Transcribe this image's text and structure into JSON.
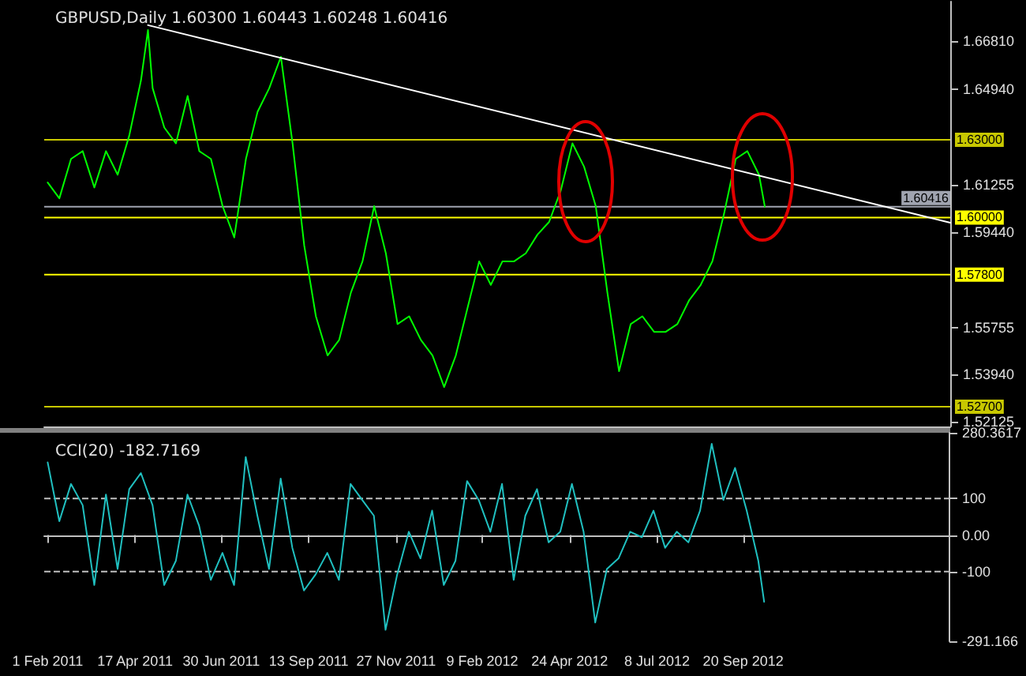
{
  "chart_data": [
    {
      "type": "line",
      "title": "GBPUSD,Daily 1.60300 1.60443 1.60248 1.60416",
      "xlim": [
        "2011-01-29",
        "2013-03-16"
      ],
      "ylim": [
        1.5194,
        1.6833
      ],
      "yticks": [
        {
          "value": 1.6681,
          "label": "1.66810"
        },
        {
          "value": 1.6494,
          "label": "1.64940"
        },
        {
          "value": 1.61255,
          "label": "1.61255"
        },
        {
          "value": 1.5944,
          "label": "1.59440"
        },
        {
          "value": 1.55755,
          "label": "1.55755"
        },
        {
          "value": 1.5394,
          "label": "1.53940"
        },
        {
          "value": 1.52125,
          "label": "1.52125"
        }
      ],
      "tick_labels": "y",
      "grid": false,
      "marker": "none",
      "line_style": "solid",
      "x": [
        "2011-02-01",
        "2011-02-11",
        "2011-02-21",
        "2011-03-03",
        "2011-03-13",
        "2011-03-23",
        "2011-04-02",
        "2011-04-12",
        "2011-04-22",
        "2011-04-28",
        "2011-05-02",
        "2011-05-12",
        "2011-05-22",
        "2011-06-01",
        "2011-06-11",
        "2011-06-21",
        "2011-07-01",
        "2011-07-11",
        "2011-07-21",
        "2011-07-31",
        "2011-08-10",
        "2011-08-20",
        "2011-08-30",
        "2011-09-09",
        "2011-09-19",
        "2011-09-29",
        "2011-10-09",
        "2011-10-19",
        "2011-10-29",
        "2011-11-08",
        "2011-11-18",
        "2011-11-28",
        "2011-12-08",
        "2011-12-18",
        "2011-12-28",
        "2012-01-07",
        "2012-01-17",
        "2012-01-27",
        "2012-02-06",
        "2012-02-16",
        "2012-02-26",
        "2012-03-07",
        "2012-03-17",
        "2012-03-27",
        "2012-04-06",
        "2012-04-16",
        "2012-04-26",
        "2012-05-06",
        "2012-05-16",
        "2012-05-26",
        "2012-06-05",
        "2012-06-15",
        "2012-06-25",
        "2012-07-05",
        "2012-07-15",
        "2012-07-25",
        "2012-08-04",
        "2012-08-14",
        "2012-08-24",
        "2012-09-03",
        "2012-09-13",
        "2012-09-23",
        "2012-10-03",
        "2012-10-08"
      ],
      "series": [
        {
          "color": "#00ff00",
          "values": [
            1.6135,
            1.6074,
            1.6226,
            1.6256,
            1.6116,
            1.6256,
            1.6165,
            1.6317,
            1.6529,
            1.6723,
            1.6499,
            1.6347,
            1.6286,
            1.6469,
            1.6256,
            1.6226,
            1.6044,
            1.5923,
            1.6226,
            1.6408,
            1.6499,
            1.662,
            1.6286,
            1.5892,
            1.5619,
            1.5468,
            1.5528,
            1.571,
            1.5831,
            1.6044,
            1.5862,
            1.5589,
            1.5619,
            1.5528,
            1.5468,
            1.5346,
            1.5468,
            1.565,
            1.5831,
            1.574,
            1.5831,
            1.5831,
            1.5862,
            1.5934,
            1.5983,
            1.6104,
            1.6286,
            1.6196,
            1.6044,
            1.571,
            1.5407,
            1.5589,
            1.5619,
            1.5559,
            1.5559,
            1.5589,
            1.568,
            1.574,
            1.5831,
            1.6014,
            1.6226,
            1.6256,
            1.6165,
            1.6042
          ]
        },
        {
          "type": "line",
          "color": "#ffffff",
          "x": [
            "2011-04-28",
            "2013-03-16"
          ],
          "values": [
            1.6742,
            1.598
          ]
        }
      ],
      "ref_lines": [
        {
          "axis": "y",
          "value": 1.63,
          "label": "1.63000",
          "color": "#c8c800"
        },
        {
          "axis": "y",
          "value": 1.60416,
          "label": "1.60416",
          "color": "#a0a4b0"
        },
        {
          "axis": "y",
          "value": 1.6,
          "label": "1.60000",
          "color": "#ffff00"
        },
        {
          "axis": "y",
          "value": 1.578,
          "label": "1.57800",
          "color": "#ffff00"
        },
        {
          "axis": "y",
          "value": 1.527,
          "label": "1.52700",
          "color": "#c8c800"
        }
      ]
    },
    {
      "type": "line",
      "title": "CCI(20) -182.7169",
      "xlim": [
        "2011-01-29",
        "2013-03-16"
      ],
      "xticks": [
        {
          "value": "2011-02-01",
          "label": "1 Feb 2011"
        },
        {
          "value": "2011-04-17",
          "label": "17 Apr 2011"
        },
        {
          "value": "2011-06-30",
          "label": "30 Jun 2011"
        },
        {
          "value": "2011-09-13",
          "label": "13 Sep 2011"
        },
        {
          "value": "2011-11-27",
          "label": "27 Nov 2011"
        },
        {
          "value": "2012-02-09",
          "label": "9 Feb 2012"
        },
        {
          "value": "2012-04-24",
          "label": "24 Apr 2012"
        },
        {
          "value": "2012-07-08",
          "label": "8 Jul 2012"
        },
        {
          "value": "2012-09-20",
          "label": "20 Sep 2012"
        }
      ],
      "ylim": [
        -291.166,
        280.3617
      ],
      "yticks": [
        {
          "value": 280.3617,
          "label": "280.3617"
        },
        100,
        {
          "value": 0,
          "label": "0.00"
        },
        -100,
        -291.166
      ],
      "grid": false,
      "marker": "none",
      "line_style": "solid",
      "x": [
        "2011-02-01",
        "2011-02-11",
        "2011-02-21",
        "2011-03-03",
        "2011-03-13",
        "2011-03-23",
        "2011-04-02",
        "2011-04-12",
        "2011-04-22",
        "2011-05-02",
        "2011-05-12",
        "2011-05-22",
        "2011-06-01",
        "2011-06-11",
        "2011-06-21",
        "2011-07-01",
        "2011-07-11",
        "2011-07-21",
        "2011-07-31",
        "2011-08-10",
        "2011-08-20",
        "2011-08-30",
        "2011-09-09",
        "2011-09-19",
        "2011-09-29",
        "2011-10-09",
        "2011-10-19",
        "2011-10-29",
        "2011-11-08",
        "2011-11-18",
        "2011-11-28",
        "2011-12-08",
        "2011-12-18",
        "2011-12-28",
        "2012-01-07",
        "2012-01-17",
        "2012-01-27",
        "2012-02-06",
        "2012-02-16",
        "2012-02-26",
        "2012-03-07",
        "2012-03-17",
        "2012-03-27",
        "2012-04-06",
        "2012-04-16",
        "2012-04-26",
        "2012-05-06",
        "2012-05-16",
        "2012-05-26",
        "2012-06-05",
        "2012-06-15",
        "2012-06-25",
        "2012-07-05",
        "2012-07-15",
        "2012-07-25",
        "2012-08-04",
        "2012-08-14",
        "2012-08-24",
        "2012-09-03",
        "2012-09-13",
        "2012-09-23",
        "2012-10-03",
        "2012-10-08"
      ],
      "series": [
        {
          "color": "#20c0c0",
          "values": [
            199,
            38,
            140,
            82,
            -137,
            111,
            -93,
            126,
            170,
            82,
            -137,
            -71,
            111,
            25,
            -123,
            -49,
            -137,
            214,
            53,
            -93,
            155,
            -35,
            -152,
            -108,
            -49,
            -123,
            140,
            96,
            53,
            -260,
            -108,
            9,
            -64,
            67,
            -137,
            -71,
            148,
            96,
            9,
            140,
            -123,
            53,
            126,
            -20,
            9,
            140,
            9,
            -240,
            -93,
            -64,
            9,
            -6,
            67,
            -35,
            9,
            -20,
            67,
            250,
            96,
            184,
            67,
            -71,
            -183
          ]
        }
      ],
      "ref_lines": [
        {
          "axis": "y",
          "value": 100,
          "color": "#c0c0c0",
          "line_style": "dashed"
        },
        {
          "axis": "y",
          "value": -100,
          "color": "#c0c0c0",
          "line_style": "dashed"
        }
      ]
    }
  ]
}
